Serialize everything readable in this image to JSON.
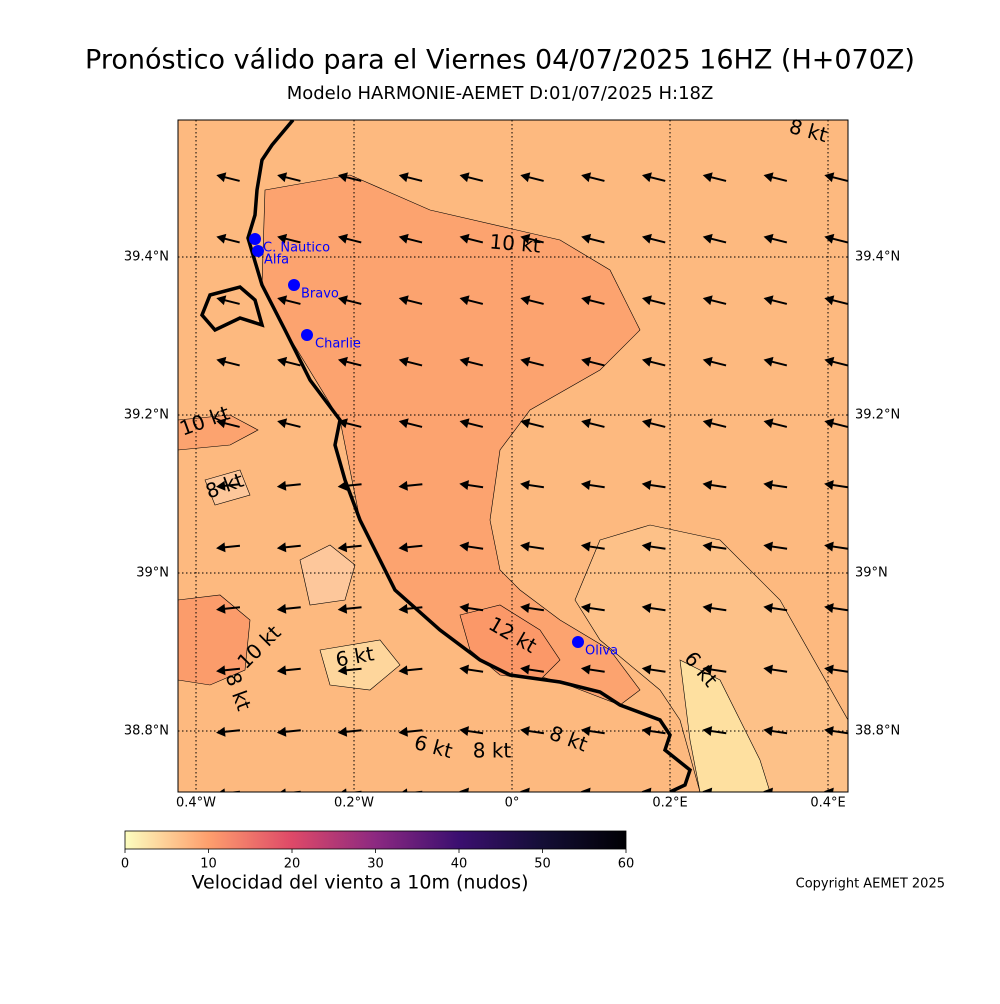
{
  "title": "Pronóstico válido para el Viernes 04/07/2025 16HZ (H+070Z)",
  "subtitle": "Modelo HARMONIE-AEMET D:01/07/2025 H:18Z",
  "map": {
    "xlim": [
      -0.4228,
      0.4253
    ],
    "ylim": [
      38.7228,
      39.5734
    ],
    "xticks": [
      {
        "value": -0.4,
        "label": "0.4°W"
      },
      {
        "value": -0.2,
        "label": "0.2°W"
      },
      {
        "value": 0,
        "label": "0°"
      },
      {
        "value": 0.2,
        "label": "0.2°E"
      },
      {
        "value": 0.4,
        "label": "0.4°E"
      }
    ],
    "yticks": [
      {
        "value": 39.4,
        "label": "39.4°N"
      },
      {
        "value": 39.2,
        "label": "39.2°N"
      },
      {
        "value": 39,
        "label": "39°N"
      },
      {
        "value": 38.8,
        "label": "38.8°N"
      }
    ],
    "grid": true,
    "stations": [
      "C. Nautico",
      "Alfa",
      "Bravo",
      "Charlie",
      "Oliva"
    ],
    "contour_labels": [
      "8 kt",
      "10 kt",
      "10 kt",
      "8 kt",
      "10 kt",
      "8 kt",
      "6 kt",
      "12 kt",
      "6 kt",
      "6 kt",
      "8 kt",
      "8 kt"
    ]
  },
  "colorbar": {
    "lim": [
      0,
      60
    ],
    "ticks": [
      0,
      10,
      20,
      30,
      40,
      50,
      60
    ],
    "label": "Velocidad del viento a 10m (nudos)"
  },
  "copyright": "Copyright AEMET 2025"
}
